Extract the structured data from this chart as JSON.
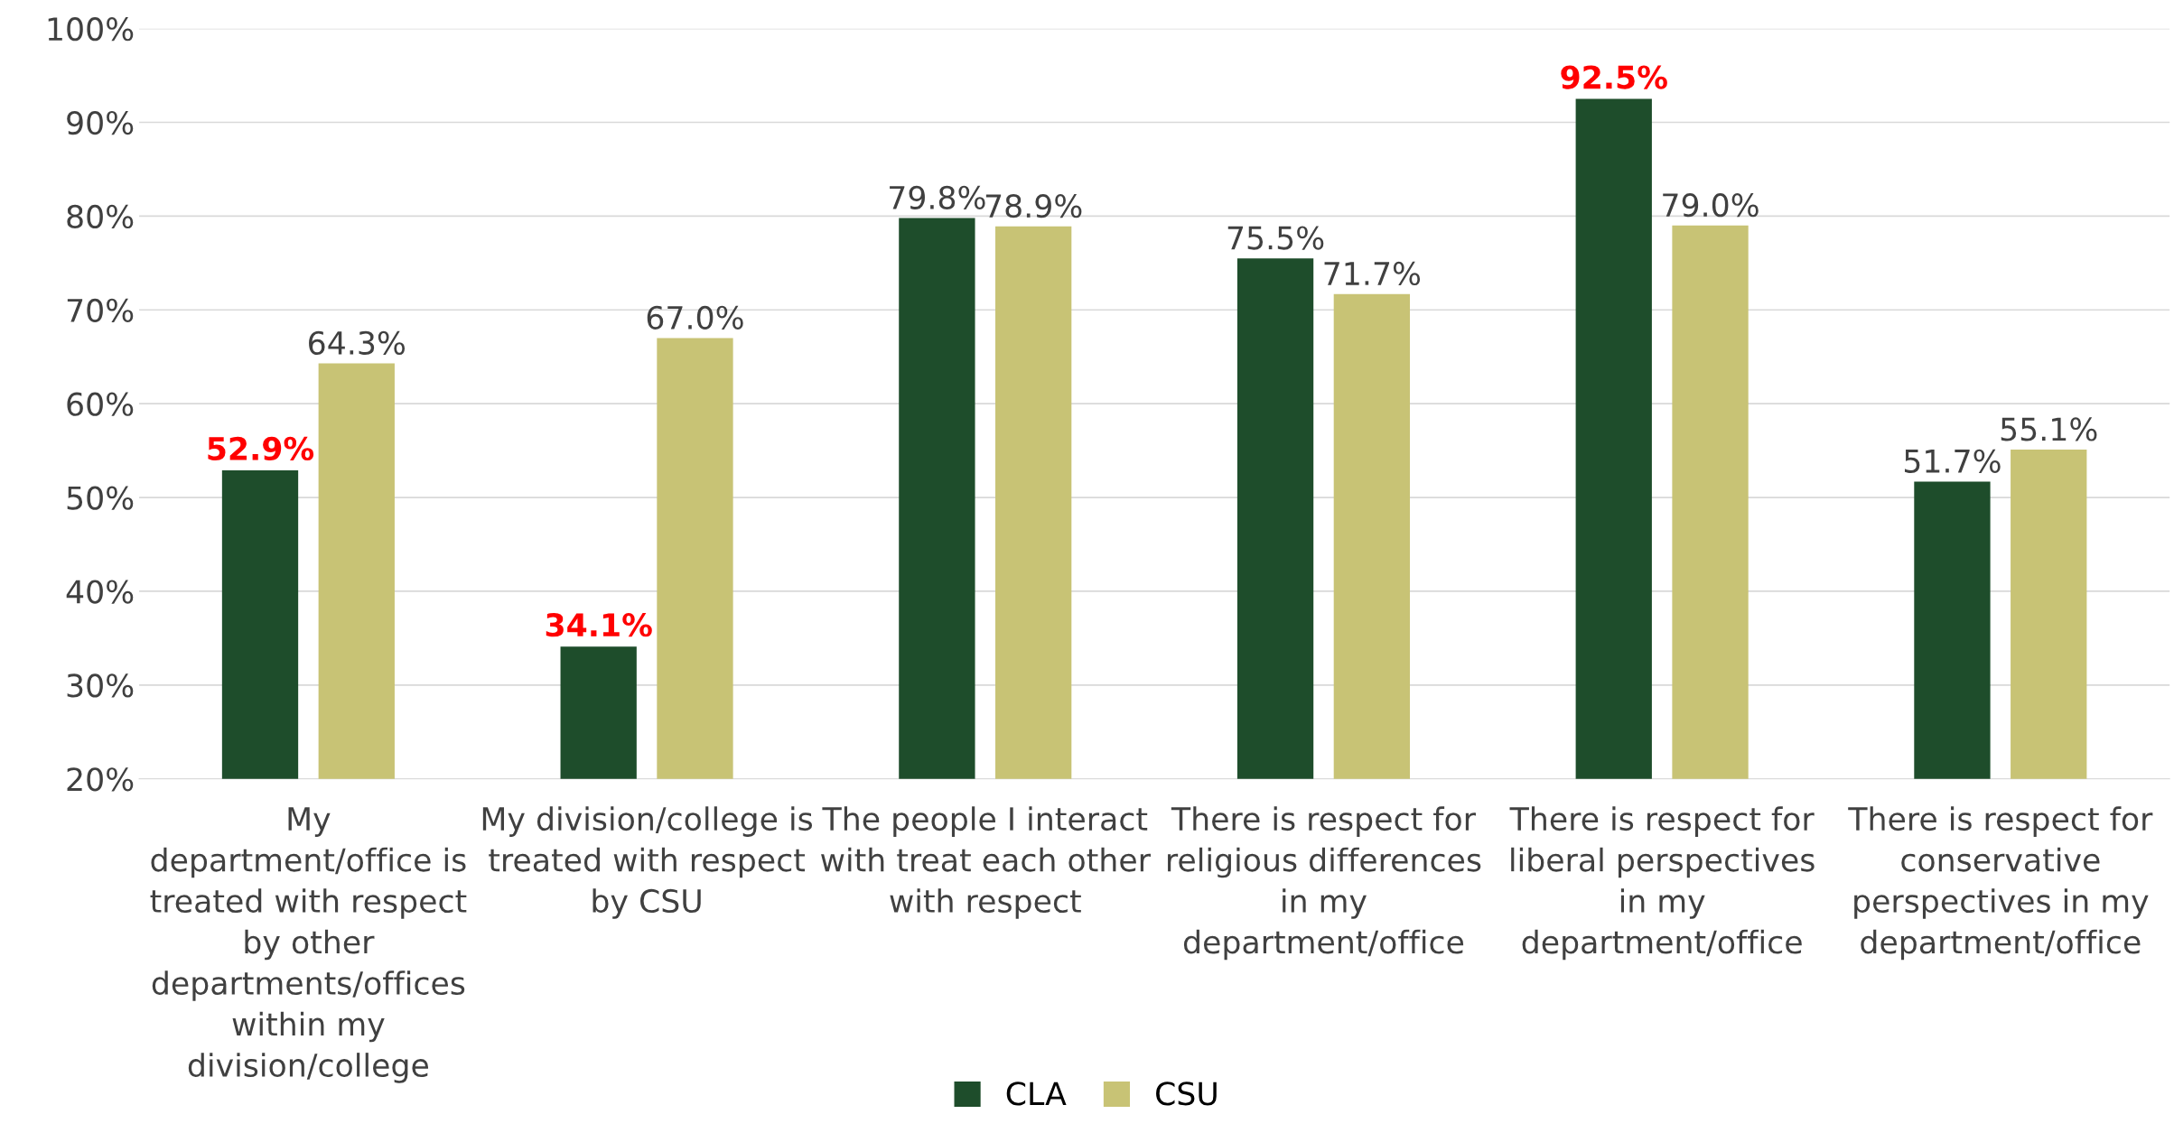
{
  "chart_data": {
    "type": "bar",
    "categories": [
      "My\ndepartment/office is\ntreated with respect\nby other\ndepartments/offices\nwithin my\ndivision/college",
      "My division/college is\ntreated with respect\nby CSU",
      "The people I interact\nwith treat each other\nwith respect",
      "There is respect for\nreligious differences\nin my\ndepartment/office",
      "There is respect for\nliberal perspectives\nin my\ndepartment/office",
      "There is respect for\nconservative\nperspectives in my\ndepartment/office"
    ],
    "series": [
      {
        "name": "CLA",
        "color": "#1e4d2b",
        "values": [
          52.9,
          34.1,
          79.8,
          75.5,
          92.5,
          51.7
        ],
        "value_labels": [
          null,
          null,
          "79.8%",
          "75.5%",
          null,
          "51.7%"
        ]
      },
      {
        "name": "CSU",
        "color": "#c8c375",
        "values": [
          64.3,
          67.0,
          78.9,
          71.7,
          79.0,
          55.1
        ],
        "value_labels": [
          "64.3%",
          "67.0%",
          "78.9%",
          "71.7%",
          "79.0%",
          "55.1%"
        ]
      }
    ],
    "annotations": [
      "52.9%",
      "34.1%",
      "92.5%"
    ],
    "ylim": [
      20,
      100
    ],
    "yticks": [
      {
        "value": 20,
        "label": "20%"
      },
      {
        "value": 30,
        "label": "30%"
      },
      {
        "value": 40,
        "label": "40%"
      },
      {
        "value": 50,
        "label": "50%"
      },
      {
        "value": 60,
        "label": "60%"
      },
      {
        "value": 70,
        "label": "70%"
      },
      {
        "value": 80,
        "label": "80%"
      },
      {
        "value": 90,
        "label": "90%"
      },
      {
        "value": 100,
        "label": "100%"
      }
    ],
    "grid": "y",
    "legend": "bottom"
  }
}
